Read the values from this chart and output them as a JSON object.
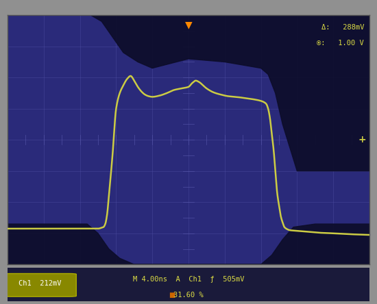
{
  "bg_color": "#2a2a7a",
  "outer_bg": "#909090",
  "grid_color": "#5555aa",
  "shadow_color": "#0d0d2a",
  "waveform_color": "#cccc44",
  "text_color": "#dddd44",
  "top_label_line1": "Δ:   288mV",
  "top_label_line2": "®:   1.00 V",
  "bottom_left": "Ch1  212mV",
  "bottom_center": "M 4.00ns  A  Ch1  ƒ  505mV",
  "bottom_pct": "31.60 %",
  "xlim": [
    0,
    10
  ],
  "ylim": [
    0,
    8
  ],
  "grid_lines_x": [
    1,
    2,
    3,
    4,
    5,
    6,
    7,
    8,
    9
  ],
  "grid_lines_y": [
    1,
    2,
    3,
    4,
    5,
    6,
    7
  ],
  "figsize": [
    5.5,
    4.44
  ],
  "dpi": 100
}
